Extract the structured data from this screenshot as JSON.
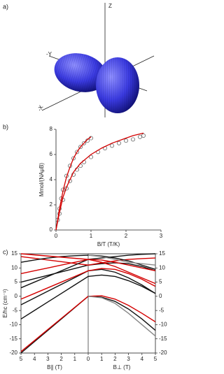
{
  "panel_a": {
    "label": "a)",
    "axes": [
      "Z",
      "-Y",
      "-X"
    ]
  },
  "chart_data": [
    {
      "type": "line",
      "panel_label": "b)",
      "x_label": "B/T (T/K)",
      "y_label": "Mmol/(NAμB)",
      "xlim": [
        0,
        3
      ],
      "ylim": [
        0,
        8
      ],
      "xticks": [
        0,
        1,
        2,
        3
      ],
      "yticks": [
        0,
        2,
        4,
        6,
        8
      ],
      "series": [
        {
          "style": "markers",
          "color": "#555555",
          "x": [
            0.05,
            0.1,
            0.15,
            0.2,
            0.3,
            0.4,
            0.5,
            0.6,
            0.7,
            0.8,
            0.9,
            1.0
          ],
          "values": [
            0.8,
            1.7,
            2.5,
            3.2,
            4.3,
            5.1,
            5.7,
            6.2,
            6.6,
            6.9,
            7.1,
            7.3
          ]
        },
        {
          "style": "markers",
          "color": "#555555",
          "x": [
            0.1,
            0.2,
            0.3,
            0.4,
            0.5,
            0.6,
            0.7,
            0.8,
            1.0,
            1.2,
            1.4,
            1.6,
            1.8,
            2.0,
            2.2,
            2.4,
            2.5
          ],
          "values": [
            1.3,
            2.4,
            3.3,
            3.9,
            4.4,
            4.8,
            5.1,
            5.4,
            5.8,
            6.2,
            6.5,
            6.7,
            6.9,
            7.1,
            7.2,
            7.4,
            7.5
          ]
        },
        {
          "style": "line",
          "color": "#d40000",
          "x": [
            0,
            0.1,
            0.2,
            0.3,
            0.4,
            0.5,
            0.6,
            0.7,
            0.8,
            0.9,
            1.0
          ],
          "values": [
            0,
            1.7,
            3.1,
            4.2,
            5.0,
            5.7,
            6.2,
            6.6,
            6.9,
            7.2,
            7.4
          ]
        },
        {
          "style": "line",
          "color": "#d40000",
          "x": [
            0,
            0.1,
            0.2,
            0.3,
            0.5,
            0.7,
            1.0,
            1.3,
            1.6,
            1.9,
            2.2,
            2.5
          ],
          "values": [
            0,
            1.4,
            2.6,
            3.4,
            4.6,
            5.3,
            6.0,
            6.5,
            6.9,
            7.2,
            7.5,
            7.7
          ]
        }
      ]
    },
    {
      "type": "line",
      "panel_label": "c)",
      "y_label": "E/hc (cm⁻¹)",
      "x_label_left": "B∥ (T)",
      "x_label_right": "B⊥ (T)",
      "xlim": [
        -5,
        5
      ],
      "ylim": [
        -20,
        15
      ],
      "y2lim": [
        -20,
        15
      ],
      "xticks": [
        {
          "value": -5,
          "label": "5"
        },
        {
          "value": -4,
          "label": "4"
        },
        {
          "value": -3,
          "label": "3"
        },
        {
          "value": -2,
          "label": "2"
        },
        {
          "value": -1,
          "label": "1"
        },
        0,
        1,
        2,
        3,
        4,
        5
      ],
      "yticks": [
        -20,
        -15,
        -10,
        -5,
        0,
        5,
        10,
        15
      ],
      "y2ticks": [
        -20,
        -15,
        -10,
        -5,
        0,
        5,
        10,
        15
      ],
      "x": [
        -5,
        -4,
        -3,
        -2,
        -1,
        0,
        1,
        2,
        3,
        4,
        5
      ],
      "series": [
        {
          "color": "#111111",
          "values": [
            -20,
            -16,
            -12,
            -8,
            -4,
            0,
            -0.3,
            -1.8,
            -4.5,
            -8,
            -12
          ]
        },
        {
          "color": "#d40000",
          "values": [
            -19.5,
            -15.6,
            -11.7,
            -7.8,
            -3.9,
            0,
            0.2,
            -1,
            -3.2,
            -6,
            -9
          ]
        },
        {
          "color": "#888888",
          "values": [
            null,
            null,
            null,
            null,
            null,
            0,
            -0.5,
            -2.5,
            -6,
            -10,
            -14
          ]
        },
        {
          "color": "#111111",
          "values": [
            -3,
            -0.6,
            1.8,
            4.2,
            6.6,
            9,
            9.5,
            8.5,
            6.5,
            4,
            1
          ]
        },
        {
          "color": "#d40000",
          "values": [
            -1,
            1,
            3,
            5,
            7,
            9,
            9.8,
            9.5,
            8,
            6,
            3.5
          ]
        },
        {
          "color": "#111111",
          "values": [
            5,
            6.2,
            7.4,
            8.6,
            9.8,
            11,
            11.5,
            11.8,
            11.5,
            10.5,
            9
          ]
        },
        {
          "color": "#d40000",
          "values": [
            14,
            13.4,
            12.8,
            12.2,
            11.6,
            11,
            11.8,
            12.5,
            13,
            13.3,
            13.5
          ]
        },
        {
          "color": "#111111",
          "values": [
            3,
            5,
            7,
            9,
            11,
            13,
            13.5,
            14,
            14.5,
            14.8,
            15
          ]
        },
        {
          "color": "#d40000",
          "values": [
            8,
            9,
            10,
            11,
            12,
            13,
            12.8,
            12,
            11,
            10,
            9
          ]
        },
        {
          "color": "#111111",
          "values": [
            12,
            12.8,
            13.5,
            14,
            14.3,
            14.5,
            14.2,
            13.5,
            12.5,
            11,
            9.5
          ]
        },
        {
          "color": "#888888",
          "values": [
            null,
            null,
            null,
            null,
            null,
            14.5,
            14,
            13,
            12,
            11.5,
            11
          ]
        },
        {
          "color": "#111111",
          "values": [
            -8,
            -5,
            -2,
            1,
            4,
            7,
            7.5,
            7,
            5.5,
            3.5,
            1
          ]
        },
        {
          "color": "#d40000",
          "values": [
            15,
            14.6,
            14.2,
            13.8,
            13.4,
            13,
            12,
            10.5,
            8.5,
            6.5,
            4.5
          ]
        }
      ]
    }
  ]
}
